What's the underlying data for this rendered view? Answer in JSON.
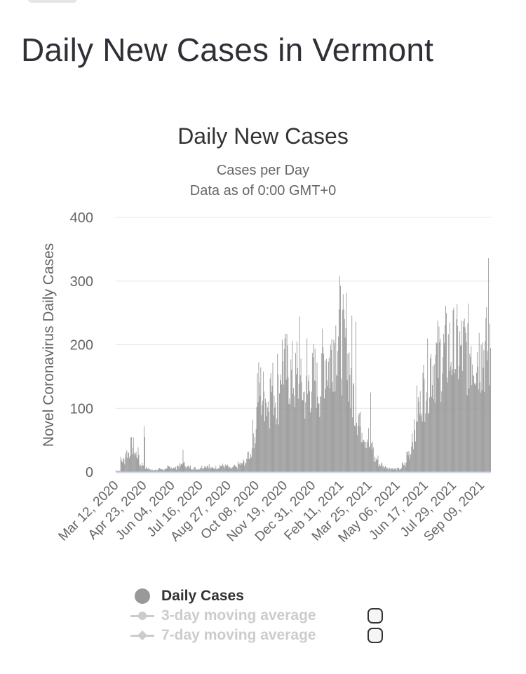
{
  "page": {
    "title": "Daily New Cases in Vermont"
  },
  "colors": {
    "bar": "#999999",
    "grid": "#e6e6e6",
    "axis_line": "#ccd6eb",
    "legend_inactive": "#cccccc"
  },
  "chart_data": {
    "type": "bar",
    "title": "Daily New Cases",
    "subtitle_lines": [
      "Cases per Day",
      "Data as of 0:00 GMT+0"
    ],
    "ylabel": "Novel Coronavirus Daily Cases",
    "xlabel": "",
    "ylim": [
      0,
      400
    ],
    "yticks": [
      0,
      100,
      200,
      300,
      400
    ],
    "x_tick_labels": [
      "Mar 12, 2020",
      "Apr 23, 2020",
      "Jun 04, 2020",
      "Jul 16, 2020",
      "Aug 27, 2020",
      "Oct 08, 2020",
      "Nov 19, 2020",
      "Dec 31, 2020",
      "Feb 11, 2021",
      "Mar 25, 2021",
      "May 06, 2021",
      "Jun 17, 2021",
      "Jul 29, 2021",
      "Sep 09, 2021"
    ],
    "days_between_ticks": 42,
    "start_date": "Mar 12, 2020",
    "total_days": 560,
    "series": [
      {
        "name": "Daily Cases",
        "note": "approximate weekly representative values read from the chart, each entry covers 7 consecutive days",
        "weekly_values": [
          2,
          18,
          30,
          40,
          28,
          12,
          6,
          4,
          3,
          5,
          4,
          8,
          6,
          10,
          12,
          8,
          6,
          5,
          8,
          10,
          6,
          7,
          10,
          9,
          6,
          8,
          12,
          15,
          28,
          60,
          130,
          120,
          110,
          130,
          120,
          175,
          160,
          150,
          140,
          130,
          120,
          140,
          150,
          135,
          180,
          170,
          210,
          225,
          200,
          170,
          120,
          90,
          70,
          55,
          40,
          20,
          12,
          8,
          6,
          5,
          5,
          12,
          30,
          60,
          100,
          130,
          150,
          170,
          175,
          180,
          190
        ],
        "spikes": [
          {
            "day": 42,
            "value": 72
          },
          {
            "day": 43,
            "value": 55
          },
          {
            "day": 100,
            "value": 35
          },
          {
            "day": 223,
            "value": 115
          },
          {
            "day": 230,
            "value": 147
          },
          {
            "day": 241,
            "value": 186
          },
          {
            "day": 270,
            "value": 205
          },
          {
            "day": 274,
            "value": 244
          },
          {
            "day": 285,
            "value": 210
          },
          {
            "day": 300,
            "value": 172
          },
          {
            "day": 320,
            "value": 200
          },
          {
            "day": 344,
            "value": 281
          },
          {
            "day": 352,
            "value": 246
          },
          {
            "day": 358,
            "value": 236
          },
          {
            "day": 380,
            "value": 125
          },
          {
            "day": 505,
            "value": 155
          },
          {
            "day": 530,
            "value": 198
          },
          {
            "day": 545,
            "value": 200
          },
          {
            "day": 556,
            "value": 336
          },
          {
            "day": 558,
            "value": 233
          }
        ]
      }
    ],
    "legend": [
      {
        "name": "Daily Cases",
        "symbol": "circle",
        "active": true
      },
      {
        "name": "3-day moving average",
        "symbol": "circle-line",
        "active": false
      },
      {
        "name": "7-day moving average",
        "symbol": "diamond-line",
        "active": false
      }
    ]
  }
}
